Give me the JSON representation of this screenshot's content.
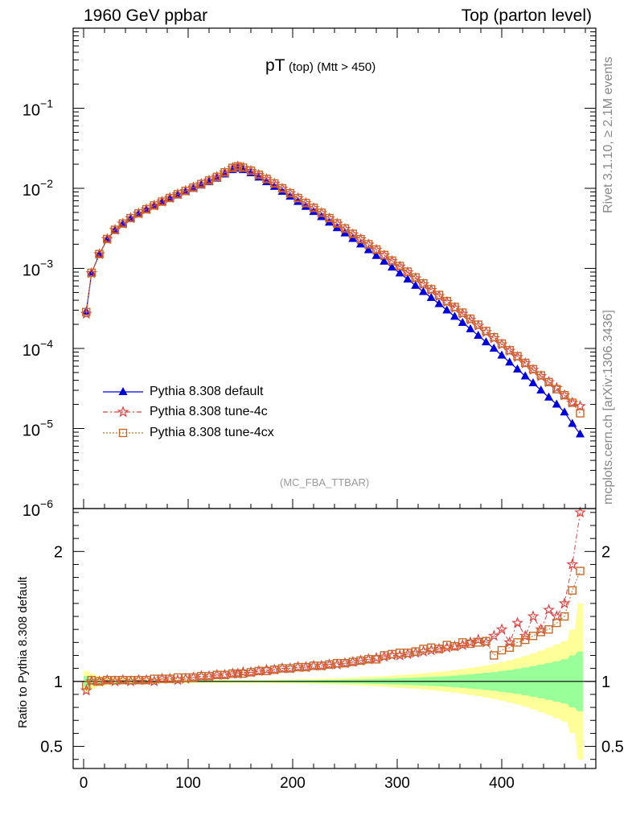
{
  "header": {
    "left": "1960 GeV ppbar",
    "right": "Top (parton level)"
  },
  "side_labels": {
    "rivet": "Rivet 3.1.10, ≥ 2.1M events",
    "mcplots": "mcplots.cern.ch [arXiv:1306.3436]"
  },
  "plot_title": {
    "main": "pT",
    "sub1": "(top)",
    "sub2": "(Mtt > 450)"
  },
  "analysis_label": "(MC_FBA_TTBAR)",
  "ratio_ylabel": "Ratio to Pythia 8.308 default",
  "legend": [
    {
      "label": "Pythia 8.308 default",
      "color": "#0000e0",
      "marker": "triangle-up"
    },
    {
      "label": "Pythia 8.308 tune-4c",
      "color": "#e04040",
      "marker": "star"
    },
    {
      "label": "Pythia 8.308 tune-4cx",
      "color": "#c86a28",
      "marker": "open-square"
    }
  ],
  "chart_data": [
    {
      "type": "line",
      "scale": "log",
      "ylim": [
        1e-06,
        1
      ],
      "xlim": [
        -10,
        490
      ],
      "yticks": [
        "10^-6",
        "10^-5",
        "10^-4",
        "10^-3",
        "10^-2",
        "10^-1"
      ],
      "series": [
        {
          "name": "Pythia 8.308 default",
          "color": "#0000e0",
          "x": [
            2.5,
            7.5,
            15,
            22.5,
            30,
            37.5,
            45,
            52.5,
            60,
            67.5,
            75,
            82.5,
            90,
            97.5,
            105,
            112.5,
            120,
            127.5,
            135,
            142.5,
            147.5,
            152.5,
            160,
            167.5,
            175,
            182.5,
            190,
            197.5,
            205,
            212.5,
            220,
            227.5,
            235,
            242.5,
            250,
            257.5,
            265,
            272.5,
            280,
            287.5,
            295,
            302.5,
            310,
            317.5,
            325,
            332.5,
            340,
            347.5,
            355,
            362.5,
            370,
            377.5,
            385,
            392.5,
            400,
            407.5,
            415,
            422.5,
            430,
            437.5,
            445,
            452.5,
            460,
            467.5,
            475
          ],
          "y": [
            0.00029,
            0.00087,
            0.0015,
            0.0023,
            0.003,
            0.0036,
            0.0042,
            0.0048,
            0.0054,
            0.006,
            0.0067,
            0.0074,
            0.0082,
            0.009,
            0.0099,
            0.0109,
            0.012,
            0.0133,
            0.015,
            0.017,
            0.0177,
            0.017,
            0.0155,
            0.0137,
            0.012,
            0.0105,
            0.0091,
            0.0079,
            0.0068,
            0.0059,
            0.0051,
            0.0044,
            0.00375,
            0.0032,
            0.00275,
            0.00235,
            0.002,
            0.0017,
            0.00144,
            0.00122,
            0.00103,
            0.00087,
            0.00073,
            0.00061,
            0.00051,
            0.00043,
            0.00036,
            0.0003,
            0.00025,
            0.00021,
            0.000175,
            0.000145,
            0.00012,
            0.0001,
            8.2e-05,
            6.7e-05,
            5.5e-05,
            4.5e-05,
            3.7e-05,
            3e-05,
            2.45e-05,
            2e-05,
            1.6e-05,
            1.15e-05,
            8.5e-06
          ]
        },
        {
          "name": "Pythia 8.308 tune-4c",
          "color": "#e04040",
          "x": [
            2.5,
            7.5,
            15,
            22.5,
            30,
            37.5,
            45,
            52.5,
            60,
            67.5,
            75,
            82.5,
            90,
            97.5,
            105,
            112.5,
            120,
            127.5,
            135,
            142.5,
            147.5,
            152.5,
            160,
            167.5,
            175,
            182.5,
            190,
            197.5,
            205,
            212.5,
            220,
            227.5,
            235,
            242.5,
            250,
            257.5,
            265,
            272.5,
            280,
            287.5,
            295,
            302.5,
            310,
            317.5,
            325,
            332.5,
            340,
            347.5,
            355,
            362.5,
            370,
            377.5,
            385,
            392.5,
            400,
            407.5,
            415,
            422.5,
            430,
            437.5,
            445,
            452.5,
            460,
            467.5,
            475
          ],
          "y": [
            0.00027,
            0.00087,
            0.0015,
            0.00232,
            0.00302,
            0.00362,
            0.00423,
            0.00484,
            0.00545,
            0.00608,
            0.0068,
            0.00755,
            0.0084,
            0.00925,
            0.0102,
            0.0113,
            0.0125,
            0.0139,
            0.0157,
            0.0179,
            0.0187,
            0.018,
            0.0165,
            0.0147,
            0.013,
            0.0114,
            0.0099,
            0.00865,
            0.0075,
            0.0065,
            0.00565,
            0.0049,
            0.0042,
            0.0036,
            0.0031,
            0.00265,
            0.0023,
            0.00198,
            0.0017,
            0.00145,
            0.00123,
            0.00105,
            0.00089,
            0.00075,
            0.00063,
            0.000535,
            0.00045,
            0.00038,
            0.00032,
            0.00027,
            0.000228,
            0.000192,
            0.00016,
            0.000134,
            0.000112,
            9.3e-05,
            7.8e-05,
            6.5e-05,
            5.4e-05,
            4.5e-05,
            3.8e-05,
            3.2e-05,
            2.6e-05,
            2.1e-05,
            1.9e-05
          ]
        },
        {
          "name": "Pythia 8.308 tune-4cx",
          "color": "#c86a28",
          "x": [
            2.5,
            7.5,
            15,
            22.5,
            30,
            37.5,
            45,
            52.5,
            60,
            67.5,
            75,
            82.5,
            90,
            97.5,
            105,
            112.5,
            120,
            127.5,
            135,
            142.5,
            147.5,
            152.5,
            160,
            167.5,
            175,
            182.5,
            190,
            197.5,
            205,
            212.5,
            220,
            227.5,
            235,
            242.5,
            250,
            257.5,
            265,
            272.5,
            280,
            287.5,
            295,
            302.5,
            310,
            317.5,
            325,
            332.5,
            340,
            347.5,
            355,
            362.5,
            370,
            377.5,
            385,
            392.5,
            400,
            407.5,
            415,
            422.5,
            430,
            437.5,
            445,
            452.5,
            460,
            467.5,
            475
          ],
          "y": [
            0.000285,
            0.00088,
            0.00151,
            0.00233,
            0.00303,
            0.00363,
            0.00425,
            0.00486,
            0.00547,
            0.0061,
            0.00682,
            0.00757,
            0.00842,
            0.00928,
            0.0102,
            0.0113,
            0.0125,
            0.0139,
            0.0158,
            0.018,
            0.0188,
            0.0181,
            0.0166,
            0.0148,
            0.0131,
            0.0115,
            0.01,
            0.0087,
            0.00755,
            0.00655,
            0.0057,
            0.00495,
            0.00425,
            0.00365,
            0.00315,
            0.0027,
            0.00232,
            0.002,
            0.00172,
            0.00147,
            0.00125,
            0.00107,
            0.00091,
            0.00077,
            0.00065,
            0.00055,
            0.000465,
            0.00039,
            0.00033,
            0.00028,
            0.000235,
            0.000198,
            0.000165,
            0.000138,
            0.000115,
            9.5e-05,
            8e-05,
            6.6e-05,
            5.5e-05,
            4.6e-05,
            3.8e-05,
            3.1e-05,
            2.6e-05,
            2.1e-05,
            1.55e-05
          ]
        }
      ]
    },
    {
      "type": "line",
      "scale": "linear",
      "ylim": [
        0.33,
        2.33
      ],
      "xlim": [
        -10,
        490
      ],
      "xticks": [
        0,
        100,
        200,
        300,
        400
      ],
      "yticks": [
        0.5,
        1,
        2
      ],
      "ylabel": "Ratio to Pythia 8.308 default",
      "bands": {
        "x": [
          2.5,
          7.5,
          15,
          22.5,
          30,
          37.5,
          45,
          52.5,
          60,
          67.5,
          75,
          82.5,
          90,
          97.5,
          105,
          112.5,
          120,
          127.5,
          135,
          142.5,
          147.5,
          152.5,
          160,
          167.5,
          175,
          182.5,
          190,
          197.5,
          205,
          212.5,
          220,
          227.5,
          235,
          242.5,
          250,
          257.5,
          265,
          272.5,
          280,
          287.5,
          295,
          302.5,
          310,
          317.5,
          325,
          332.5,
          340,
          347.5,
          355,
          362.5,
          370,
          377.5,
          385,
          392.5,
          400,
          407.5,
          415,
          422.5,
          430,
          437.5,
          445,
          452.5,
          460,
          467.5,
          475
        ],
        "green_halfwidth": [
          0.04,
          0.03,
          0.02,
          0.015,
          0.012,
          0.011,
          0.01,
          0.009,
          0.009,
          0.008,
          0.008,
          0.008,
          0.007,
          0.007,
          0.007,
          0.007,
          0.006,
          0.006,
          0.006,
          0.006,
          0.006,
          0.006,
          0.006,
          0.006,
          0.007,
          0.007,
          0.008,
          0.008,
          0.009,
          0.01,
          0.01,
          0.011,
          0.012,
          0.013,
          0.014,
          0.015,
          0.016,
          0.018,
          0.02,
          0.021,
          0.023,
          0.025,
          0.027,
          0.029,
          0.032,
          0.035,
          0.038,
          0.041,
          0.045,
          0.05,
          0.055,
          0.06,
          0.066,
          0.072,
          0.08,
          0.088,
          0.097,
          0.107,
          0.118,
          0.13,
          0.142,
          0.156,
          0.17,
          0.2,
          0.23
        ],
        "yellow_halfwidth": [
          0.08,
          0.06,
          0.04,
          0.03,
          0.025,
          0.022,
          0.02,
          0.018,
          0.017,
          0.016,
          0.015,
          0.015,
          0.014,
          0.014,
          0.013,
          0.013,
          0.012,
          0.012,
          0.012,
          0.012,
          0.012,
          0.012,
          0.012,
          0.012,
          0.013,
          0.014,
          0.015,
          0.016,
          0.017,
          0.018,
          0.02,
          0.021,
          0.023,
          0.025,
          0.027,
          0.029,
          0.032,
          0.035,
          0.038,
          0.041,
          0.045,
          0.049,
          0.053,
          0.057,
          0.062,
          0.068,
          0.074,
          0.08,
          0.087,
          0.095,
          0.104,
          0.113,
          0.123,
          0.135,
          0.148,
          0.162,
          0.178,
          0.196,
          0.215,
          0.237,
          0.26,
          0.285,
          0.31,
          0.4,
          0.6
        ]
      },
      "series": [
        {
          "name": "Pythia 8.308 tune-4c",
          "color": "#e04040",
          "x": [
            2.5,
            7.5,
            15,
            22.5,
            30,
            37.5,
            45,
            52.5,
            60,
            67.5,
            75,
            82.5,
            90,
            97.5,
            105,
            112.5,
            120,
            127.5,
            135,
            142.5,
            147.5,
            152.5,
            160,
            167.5,
            175,
            182.5,
            190,
            197.5,
            205,
            212.5,
            220,
            227.5,
            235,
            242.5,
            250,
            257.5,
            265,
            272.5,
            280,
            287.5,
            295,
            302.5,
            310,
            317.5,
            325,
            332.5,
            340,
            347.5,
            355,
            362.5,
            370,
            377.5,
            385,
            392.5,
            400,
            407.5,
            415,
            422.5,
            430,
            437.5,
            445,
            452.5,
            460,
            467.5,
            475
          ],
          "y": [
            0.93,
            1.0,
            1.0,
            1.01,
            1.0,
            1.01,
            1.0,
            1.01,
            1.01,
            1.0,
            1.02,
            1.02,
            1.01,
            1.02,
            1.03,
            1.04,
            1.04,
            1.05,
            1.05,
            1.06,
            1.06,
            1.07,
            1.07,
            1.08,
            1.09,
            1.09,
            1.1,
            1.1,
            1.11,
            1.11,
            1.12,
            1.12,
            1.13,
            1.13,
            1.14,
            1.15,
            1.16,
            1.17,
            1.18,
            1.19,
            1.2,
            1.2,
            1.21,
            1.22,
            1.23,
            1.24,
            1.25,
            1.26,
            1.27,
            1.28,
            1.3,
            1.32,
            1.3,
            1.35,
            1.4,
            1.3,
            1.45,
            1.35,
            1.5,
            1.4,
            1.55,
            1.5,
            1.6,
            1.9,
            2.3
          ]
        },
        {
          "name": "Pythia 8.308 tune-4cx",
          "color": "#c86a28",
          "x": [
            2.5,
            7.5,
            15,
            22.5,
            30,
            37.5,
            45,
            52.5,
            60,
            67.5,
            75,
            82.5,
            90,
            97.5,
            105,
            112.5,
            120,
            127.5,
            135,
            142.5,
            147.5,
            152.5,
            160,
            167.5,
            175,
            182.5,
            190,
            197.5,
            205,
            212.5,
            220,
            227.5,
            235,
            242.5,
            250,
            257.5,
            265,
            272.5,
            280,
            287.5,
            295,
            302.5,
            310,
            317.5,
            325,
            332.5,
            340,
            347.5,
            355,
            362.5,
            370,
            377.5,
            385,
            392.5,
            400,
            407.5,
            415,
            422.5,
            430,
            437.5,
            445,
            452.5,
            460,
            467.5,
            475
          ],
          "y": [
            0.97,
            1.01,
            1.0,
            1.01,
            1.01,
            1.01,
            1.01,
            1.01,
            1.01,
            1.02,
            1.02,
            1.02,
            1.03,
            1.03,
            1.03,
            1.04,
            1.04,
            1.05,
            1.05,
            1.06,
            1.06,
            1.06,
            1.07,
            1.08,
            1.08,
            1.09,
            1.1,
            1.1,
            1.11,
            1.11,
            1.12,
            1.12,
            1.13,
            1.14,
            1.14,
            1.15,
            1.16,
            1.17,
            1.17,
            1.2,
            1.21,
            1.22,
            1.22,
            1.23,
            1.25,
            1.26,
            1.25,
            1.28,
            1.27,
            1.3,
            1.29,
            1.3,
            1.31,
            1.2,
            1.24,
            1.26,
            1.3,
            1.32,
            1.35,
            1.38,
            1.4,
            1.45,
            1.5,
            1.7,
            1.85
          ]
        }
      ]
    }
  ]
}
